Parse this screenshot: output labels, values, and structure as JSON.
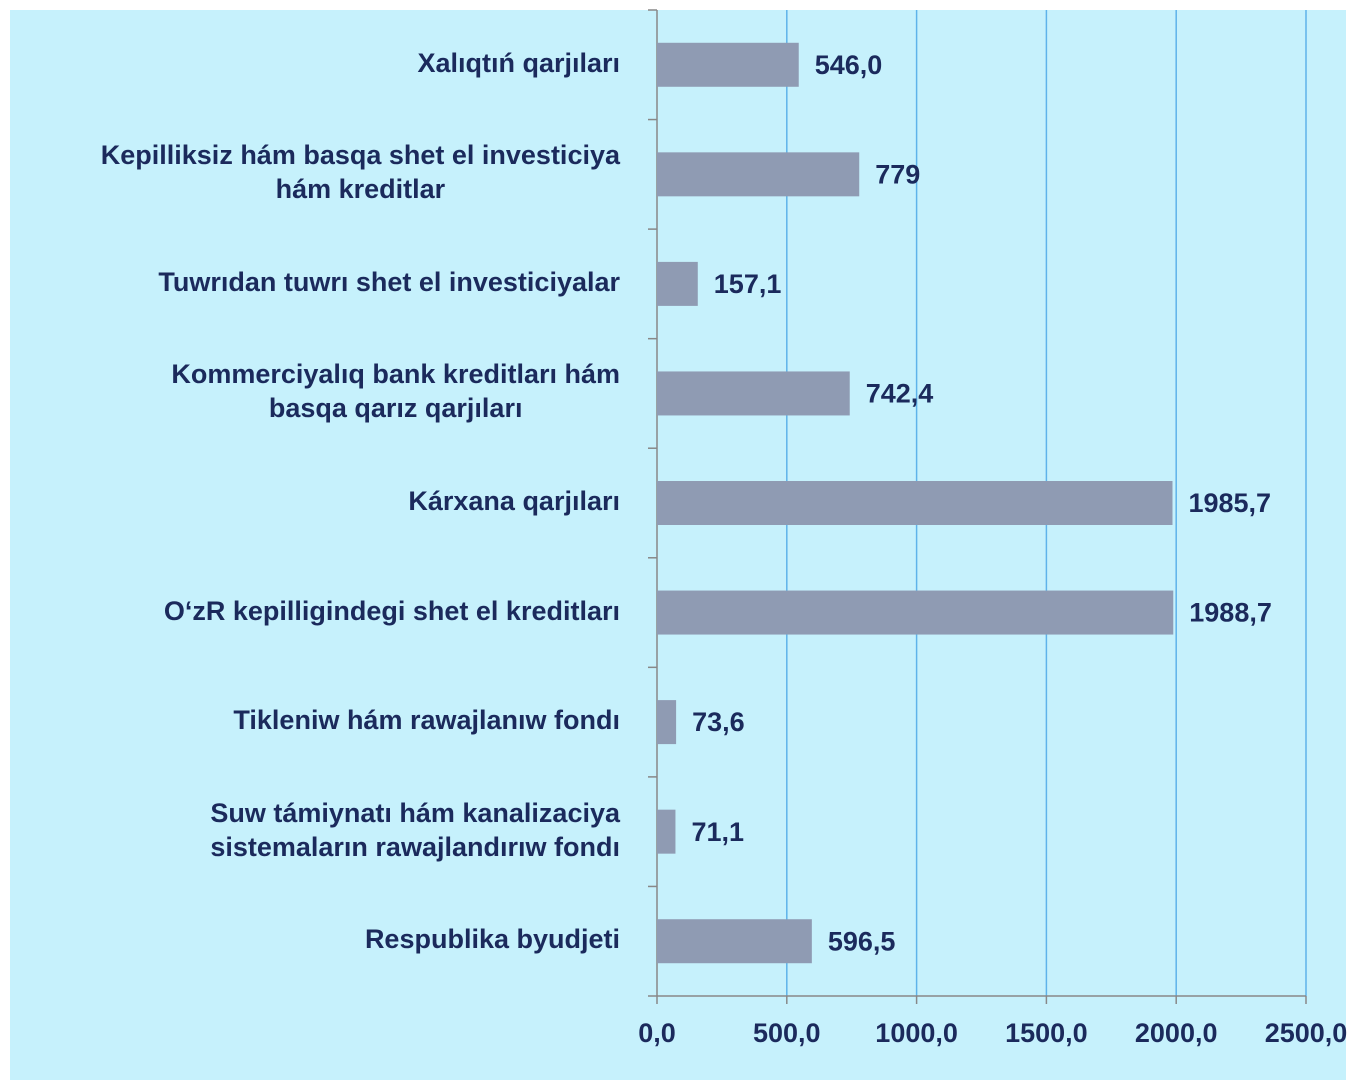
{
  "chart_data": {
    "type": "barh",
    "categories": [
      "Xalıqtıń qarjıları",
      "Kepilliksiz hám basqa shet el investiciya\nhám kreditlar",
      "Tuwrıdan tuwrı shet el investiciyalar",
      "Kommerciyalıq bank kreditları  hám\nbasqa qarız qarjıları",
      "Kárxana qarjıları",
      "O‘zR kepilligindegi  shet el kreditları",
      "Tikleniw hám rawajlanıw fondı",
      "Suw támiynatı hám kanalizaciya\nsistemaların rawajlandırıw fondı",
      "Respublika byudjeti"
    ],
    "values": [
      546.0,
      779,
      157.1,
      742.4,
      1985.7,
      1988.7,
      73.6,
      71.1,
      596.5
    ],
    "value_labels": [
      "546,0",
      "779",
      "157,1",
      "742,4",
      "1985,7",
      "1988,7",
      "73,6",
      "71,1",
      "596,5"
    ],
    "color": "#8f9bb3",
    "xlim": [
      0,
      2500
    ],
    "xticks": [
      {
        "value": 0,
        "label": "0,0"
      },
      {
        "value": 500,
        "label": "500,0"
      },
      {
        "value": 1000,
        "label": "1000,0"
      },
      {
        "value": 1500,
        "label": "1500,0"
      },
      {
        "value": 2000,
        "label": "2000,0"
      },
      {
        "value": 2500,
        "label": "2500,0"
      }
    ],
    "grid": true
  }
}
